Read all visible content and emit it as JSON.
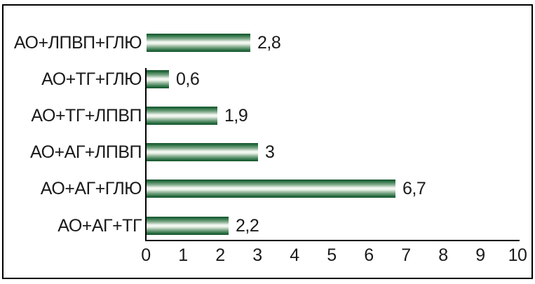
{
  "chart_data": {
    "type": "bar",
    "orientation": "horizontal",
    "title": "",
    "xlabel": "",
    "ylabel": "",
    "categories": [
      "АО+ЛПВП+ГЛЮ",
      "АО+ТГ+ГЛЮ",
      "АО+ТГ+ЛПВП",
      "АО+АГ+ЛПВП",
      "АО+АГ+ГЛЮ",
      "АО+АГ+ТГ"
    ],
    "values": [
      2.8,
      0.6,
      1.9,
      3,
      6.7,
      2.2
    ],
    "value_labels": [
      "2,8",
      "0,6",
      "1,9",
      "3",
      "6,7",
      "2,2"
    ],
    "x_ticks": [
      "0",
      "1",
      "2",
      "3",
      "4",
      "5",
      "6",
      "7",
      "8",
      "9",
      "10"
    ],
    "xlim": [
      0,
      10
    ],
    "grid": false,
    "legend": false,
    "colors": {
      "bar_dark": "#14522b",
      "bar_mid": "#7fa98a",
      "bar_light": "#f6f9f5",
      "axis": "#000000",
      "text": "#1a1a1a",
      "frame_border": "#000000",
      "background": "#ffffff"
    }
  }
}
